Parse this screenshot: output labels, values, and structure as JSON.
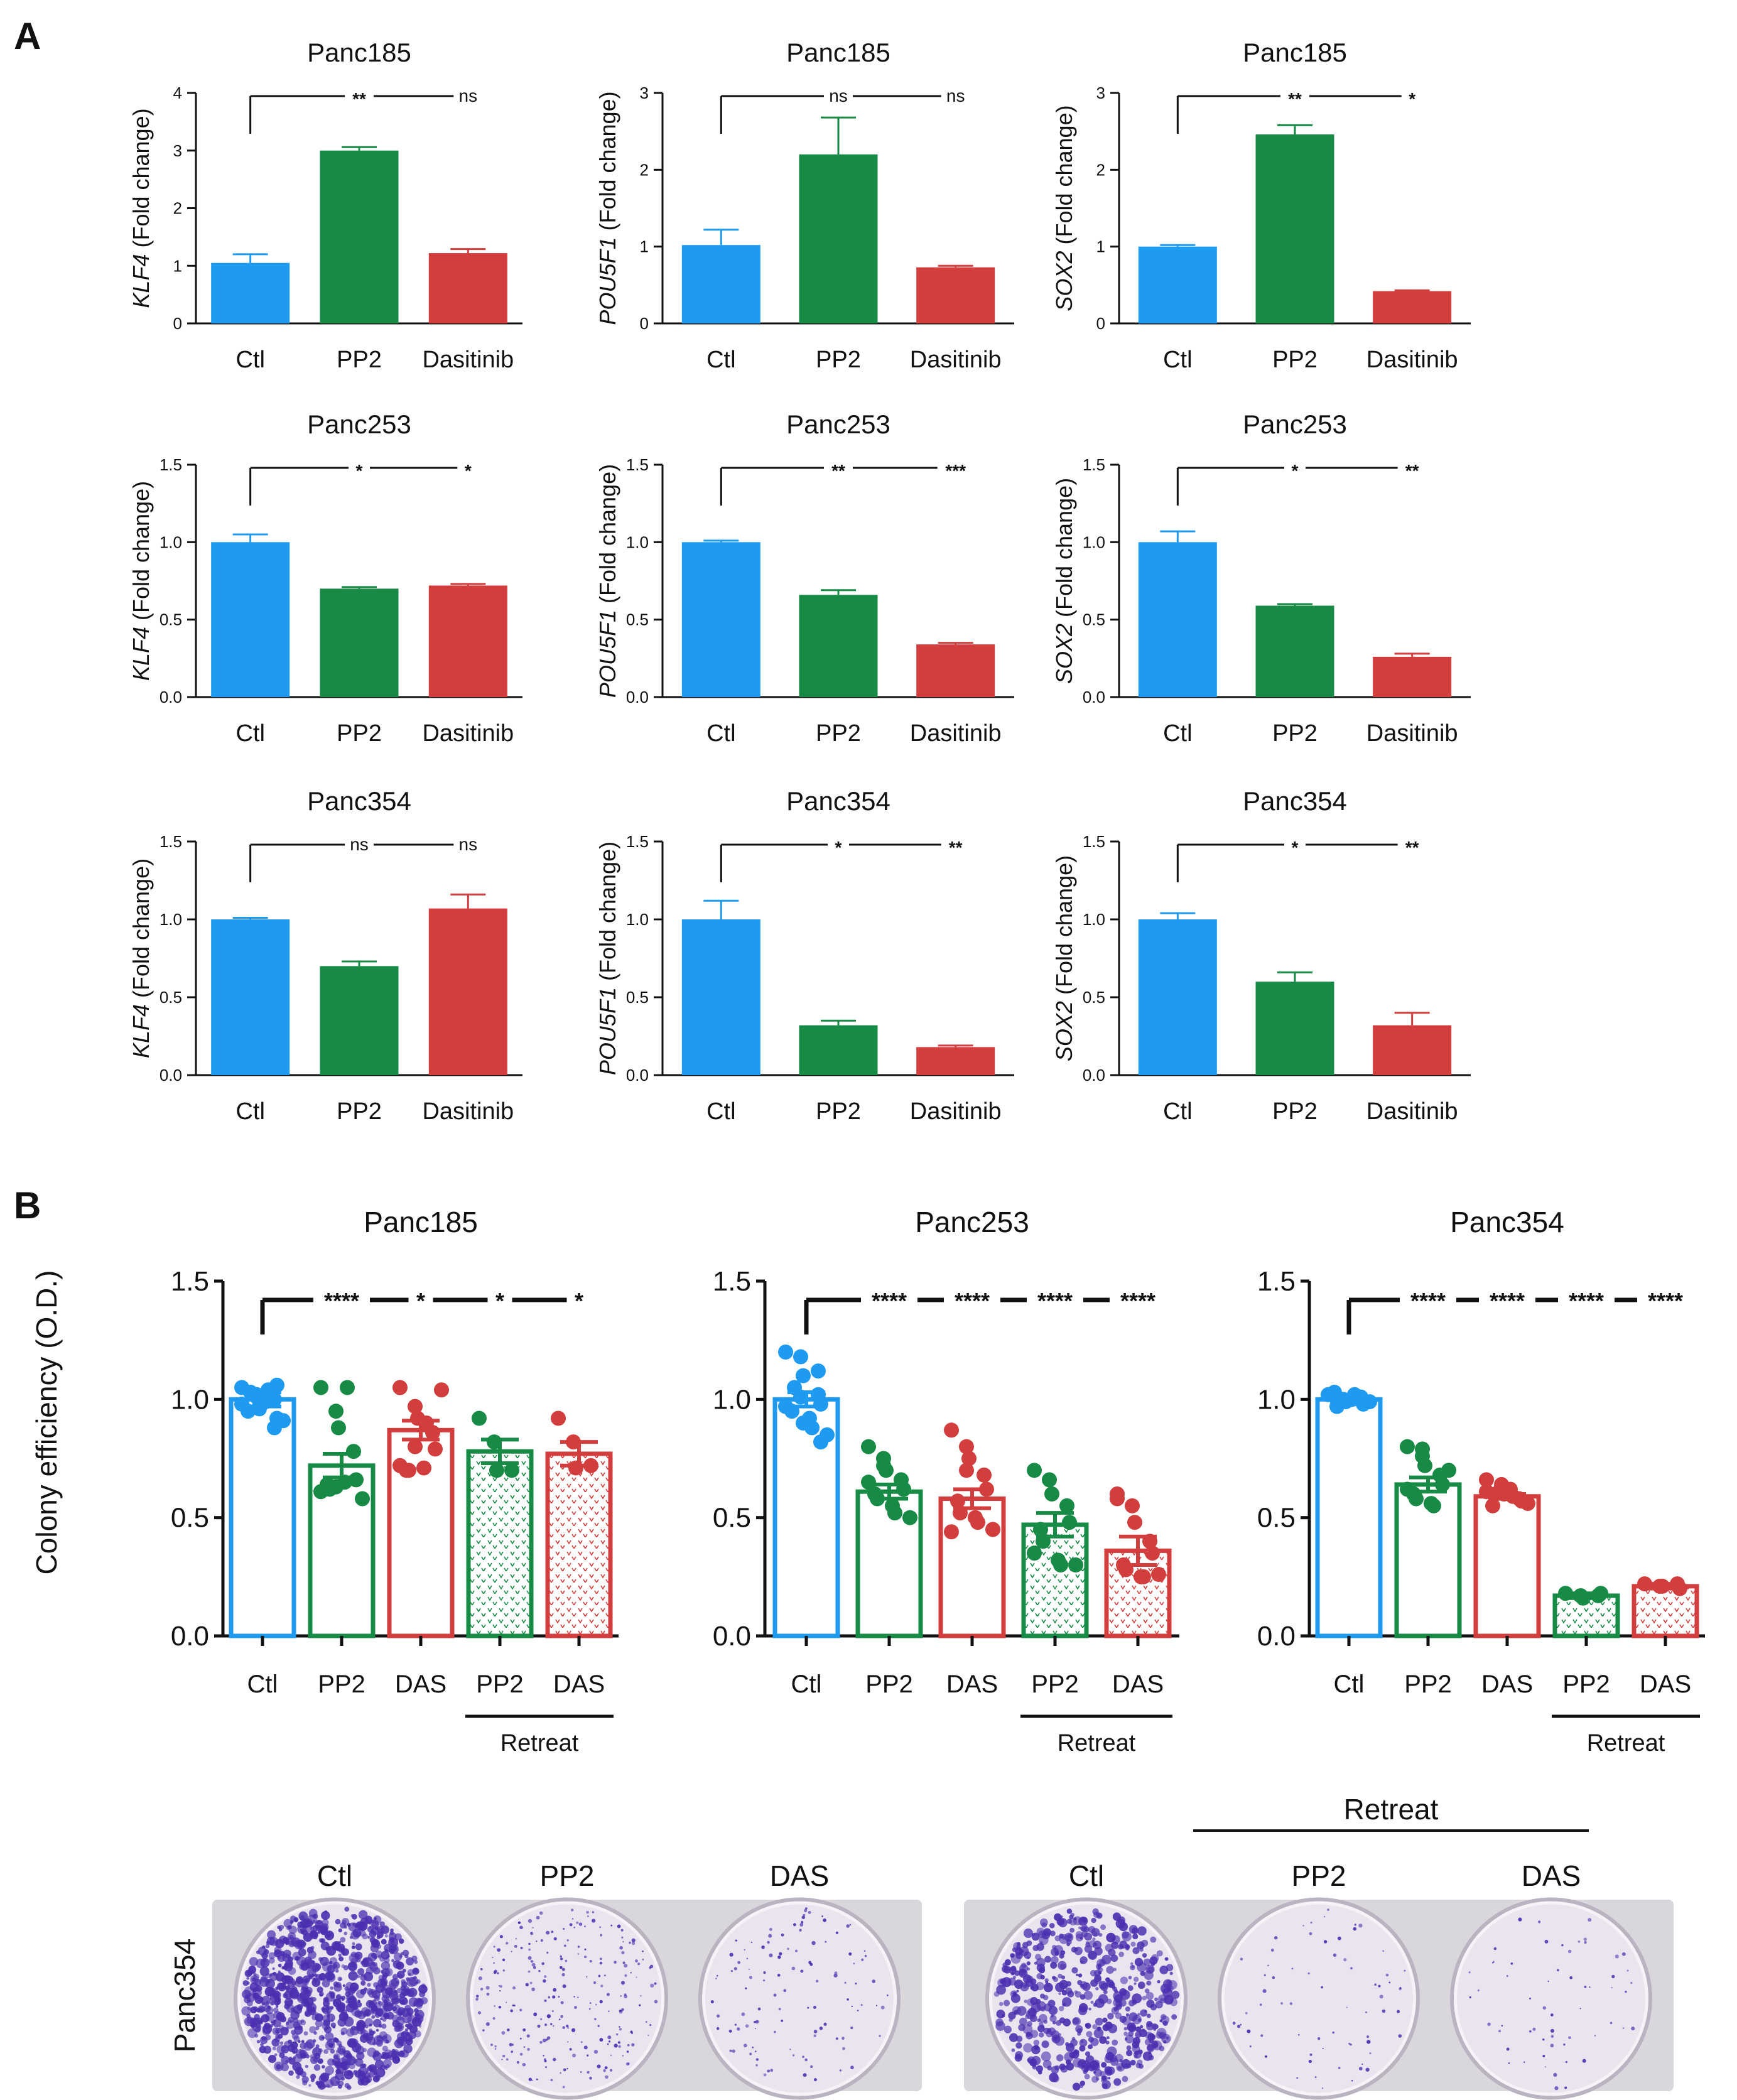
{
  "panel_labels": {
    "a": "A",
    "b": "B"
  },
  "colors": {
    "ctl": "#1e9bf0",
    "pp2": "#178a45",
    "das": "#d23d3d",
    "axis": "#111111",
    "dish_stain": "#4b2fb0",
    "dish_bg": "#e9e4ee",
    "tray": "#d9d6dc"
  },
  "panel_b_common": {
    "ylabel": "Colony efficiency (O.D.)",
    "retreat_label": "Retreat"
  },
  "chart_data": [
    {
      "id": "a11",
      "panel": "A",
      "type": "bar",
      "title": "Panc185",
      "ylabel_gene": "KLF4",
      "ylabel_rest": " (Fold change)",
      "categories": [
        "Ctl",
        "PP2",
        "Dasitinib"
      ],
      "values": [
        1.05,
        3.0,
        1.22
      ],
      "errors": [
        0.15,
        0.06,
        0.07
      ],
      "ylim": [
        0,
        4
      ],
      "ticks": [
        0,
        1,
        2,
        3,
        4
      ],
      "tick_labels": [
        "0",
        "1",
        "2",
        "3",
        "4"
      ],
      "sig": [
        "**",
        "ns"
      ]
    },
    {
      "id": "a12",
      "panel": "A",
      "type": "bar",
      "title": "Panc185",
      "ylabel_gene": "POU5F1",
      "ylabel_rest": " (Fold change)",
      "categories": [
        "Ctl",
        "PP2",
        "Dasitinib"
      ],
      "values": [
        1.02,
        2.2,
        0.73
      ],
      "errors": [
        0.2,
        0.48,
        0.02
      ],
      "ylim": [
        0,
        3
      ],
      "ticks": [
        0,
        1,
        2,
        3
      ],
      "tick_labels": [
        "0",
        "1",
        "2",
        "3"
      ],
      "sig": [
        "ns",
        "ns"
      ]
    },
    {
      "id": "a13",
      "panel": "A",
      "type": "bar",
      "title": "Panc185",
      "ylabel_gene": "SOX2",
      "ylabel_rest": " (Fold change)",
      "categories": [
        "Ctl",
        "PP2",
        "Dasitinib"
      ],
      "values": [
        1.0,
        2.46,
        0.42
      ],
      "errors": [
        0.02,
        0.12,
        0.01
      ],
      "ylim": [
        0,
        3
      ],
      "ticks": [
        0,
        1,
        2,
        3
      ],
      "tick_labels": [
        "0",
        "1",
        "2",
        "3"
      ],
      "sig": [
        "**",
        "*"
      ]
    },
    {
      "id": "a21",
      "panel": "A",
      "type": "bar",
      "title": "Panc253",
      "ylabel_gene": "KLF4",
      "ylabel_rest": " (Fold change)",
      "categories": [
        "Ctl",
        "PP2",
        "Dasitinib"
      ],
      "values": [
        1.0,
        0.7,
        0.72
      ],
      "errors": [
        0.05,
        0.01,
        0.01
      ],
      "ylim": [
        0,
        1.5
      ],
      "ticks": [
        0,
        0.5,
        1,
        1.5
      ],
      "tick_labels": [
        "0.0",
        "0.5",
        "1.0",
        "1.5"
      ],
      "sig": [
        "*",
        "*"
      ]
    },
    {
      "id": "a22",
      "panel": "A",
      "type": "bar",
      "title": "Panc253",
      "ylabel_gene": "POU5F1",
      "ylabel_rest": " (Fold change)",
      "categories": [
        "Ctl",
        "PP2",
        "Dasitinib"
      ],
      "values": [
        1.0,
        0.66,
        0.34
      ],
      "errors": [
        0.01,
        0.03,
        0.01
      ],
      "ylim": [
        0,
        1.5
      ],
      "ticks": [
        0,
        0.5,
        1,
        1.5
      ],
      "tick_labels": [
        "0.0",
        "0.5",
        "1.0",
        "1.5"
      ],
      "sig": [
        "**",
        "***"
      ]
    },
    {
      "id": "a23",
      "panel": "A",
      "type": "bar",
      "title": "Panc253",
      "ylabel_gene": "SOX2",
      "ylabel_rest": " (Fold change)",
      "categories": [
        "Ctl",
        "PP2",
        "Dasitinib"
      ],
      "values": [
        1.0,
        0.59,
        0.26
      ],
      "errors": [
        0.07,
        0.01,
        0.02
      ],
      "ylim": [
        0,
        1.5
      ],
      "ticks": [
        0,
        0.5,
        1,
        1.5
      ],
      "tick_labels": [
        "0.0",
        "0.5",
        "1.0",
        "1.5"
      ],
      "sig": [
        "*",
        "**"
      ]
    },
    {
      "id": "a31",
      "panel": "A",
      "type": "bar",
      "title": "Panc354",
      "ylabel_gene": "KLF4",
      "ylabel_rest": " (Fold change)",
      "categories": [
        "Ctl",
        "PP2",
        "Dasitinib"
      ],
      "values": [
        1.0,
        0.7,
        1.07
      ],
      "errors": [
        0.01,
        0.03,
        0.09
      ],
      "ylim": [
        0,
        1.5
      ],
      "ticks": [
        0,
        0.5,
        1,
        1.5
      ],
      "tick_labels": [
        "0.0",
        "0.5",
        "1.0",
        "1.5"
      ],
      "sig": [
        "ns",
        "ns"
      ]
    },
    {
      "id": "a32",
      "panel": "A",
      "type": "bar",
      "title": "Panc354",
      "ylabel_gene": "POU5F1",
      "ylabel_rest": " (Fold change)",
      "categories": [
        "Ctl",
        "PP2",
        "Dasitinib"
      ],
      "values": [
        1.0,
        0.32,
        0.18
      ],
      "errors": [
        0.12,
        0.03,
        0.01
      ],
      "ylim": [
        0,
        1.5
      ],
      "ticks": [
        0,
        0.5,
        1,
        1.5
      ],
      "tick_labels": [
        "0.0",
        "0.5",
        "1.0",
        "1.5"
      ],
      "sig": [
        "*",
        "**"
      ]
    },
    {
      "id": "a33",
      "panel": "A",
      "type": "bar",
      "title": "Panc354",
      "ylabel_gene": "SOX2",
      "ylabel_rest": " (Fold change)",
      "categories": [
        "Ctl",
        "PP2",
        "Dasitinib"
      ],
      "values": [
        1.0,
        0.6,
        0.32
      ],
      "errors": [
        0.04,
        0.06,
        0.08
      ],
      "ylim": [
        0,
        1.5
      ],
      "ticks": [
        0,
        0.5,
        1,
        1.5
      ],
      "tick_labels": [
        "0.0",
        "0.5",
        "1.0",
        "1.5"
      ],
      "sig": [
        "*",
        "**"
      ]
    },
    {
      "id": "b1",
      "panel": "B",
      "type": "scatter",
      "title": "Panc185",
      "categories": [
        "Ctl",
        "PP2",
        "DAS",
        "PP2",
        "DAS"
      ],
      "retreat_groups": [
        3,
        4
      ],
      "values": [
        1.0,
        0.72,
        0.87,
        0.78,
        0.77
      ],
      "errors": [
        0.03,
        0.05,
        0.04,
        0.05,
        0.05
      ],
      "points": [
        [
          1.05,
          1.02,
          0.97,
          1.0,
          0.92,
          0.95,
          1.03,
          0.99,
          1.04,
          0.91,
          0.98,
          1.01,
          0.96,
          0.88,
          1.06
        ],
        [
          1.05,
          0.95,
          0.88,
          0.78,
          0.66,
          0.64,
          0.62,
          0.65,
          1.05,
          0.58,
          0.61,
          0.63
        ],
        [
          1.05,
          0.97,
          0.92,
          0.86,
          0.79,
          0.7,
          0.7,
          0.71,
          0.9,
          1.04,
          0.72,
          0.8
        ],
        [
          0.92,
          0.82,
          0.7,
          0.7
        ],
        [
          0.92,
          0.82,
          0.71,
          0.72
        ]
      ],
      "ylim": [
        0,
        1.5
      ],
      "ticks": [
        0,
        0.5,
        1,
        1.5
      ],
      "tick_labels": [
        "0.0",
        "0.5",
        "1.0",
        "1.5"
      ],
      "sig": [
        "****",
        "*",
        "*",
        "*"
      ]
    },
    {
      "id": "b2",
      "panel": "B",
      "type": "scatter",
      "title": "Panc253",
      "categories": [
        "Ctl",
        "PP2",
        "DAS",
        "PP2",
        "DAS"
      ],
      "retreat_groups": [
        3,
        4
      ],
      "values": [
        1.0,
        0.61,
        0.58,
        0.47,
        0.36
      ],
      "errors": [
        0.03,
        0.03,
        0.04,
        0.05,
        0.06
      ],
      "points": [
        [
          1.2,
          1.18,
          1.1,
          1.02,
          0.98,
          0.95,
          1.05,
          0.92,
          0.88,
          0.85,
          0.97,
          1.01,
          0.9,
          1.12,
          0.82
        ],
        [
          0.8,
          0.75,
          0.7,
          0.66,
          0.62,
          0.6,
          0.58,
          0.55,
          0.52,
          0.5,
          0.65,
          0.72
        ],
        [
          0.87,
          0.8,
          0.75,
          0.68,
          0.62,
          0.57,
          0.52,
          0.5,
          0.48,
          0.45,
          0.44,
          0.7
        ],
        [
          0.7,
          0.66,
          0.6,
          0.55,
          0.48,
          0.45,
          0.4,
          0.32,
          0.3,
          0.3,
          0.35
        ],
        [
          0.6,
          0.55,
          0.48,
          0.4,
          0.35,
          0.3,
          0.28,
          0.25,
          0.25,
          0.26,
          0.58
        ]
      ],
      "ylim": [
        0,
        1.5
      ],
      "ticks": [
        0,
        0.5,
        1,
        1.5
      ],
      "tick_labels": [
        "0.0",
        "0.5",
        "1.0",
        "1.5"
      ],
      "sig": [
        "****",
        "****",
        "****",
        "****"
      ]
    },
    {
      "id": "b3",
      "panel": "B",
      "type": "scatter",
      "title": "Panc354",
      "categories": [
        "Ctl",
        "PP2",
        "DAS",
        "PP2",
        "DAS"
      ],
      "retreat_groups": [
        3,
        4
      ],
      "values": [
        1.0,
        0.64,
        0.59,
        0.17,
        0.21
      ],
      "errors": [
        0.01,
        0.03,
        0.01,
        0.01,
        0.01
      ],
      "points": [
        [
          1.02,
          1.0,
          0.99,
          1.01,
          0.98,
          1.03,
          0.97,
          1.0,
          1.02,
          0.99
        ],
        [
          0.8,
          0.76,
          0.72,
          0.68,
          0.64,
          0.6,
          0.58,
          0.56,
          0.55,
          0.7,
          0.62,
          0.79
        ],
        [
          0.66,
          0.63,
          0.6,
          0.58,
          0.57,
          0.55,
          0.6,
          0.62,
          0.59,
          0.56,
          0.61,
          0.64
        ],
        [
          0.18,
          0.17,
          0.16,
          0.17,
          0.18
        ],
        [
          0.22,
          0.21,
          0.21,
          0.22,
          0.2
        ]
      ],
      "ylim": [
        0,
        1.5
      ],
      "ticks": [
        0,
        0.5,
        1,
        1.5
      ],
      "tick_labels": [
        "0.0",
        "0.5",
        "1.0",
        "1.5"
      ],
      "sig": [
        "****",
        "****",
        "****",
        "****"
      ]
    }
  ],
  "photos": [
    {
      "id": "photo-left",
      "cell_line": "Panc354",
      "wells": [
        "Ctl",
        "PP2",
        "DAS"
      ],
      "stain_density": [
        1.0,
        0.22,
        0.08
      ]
    },
    {
      "id": "photo-right",
      "wells": [
        "Ctl",
        "PP2",
        "DAS"
      ],
      "retreat_label": "Retreat",
      "stain_density": [
        0.55,
        0.03,
        0.02
      ]
    }
  ]
}
